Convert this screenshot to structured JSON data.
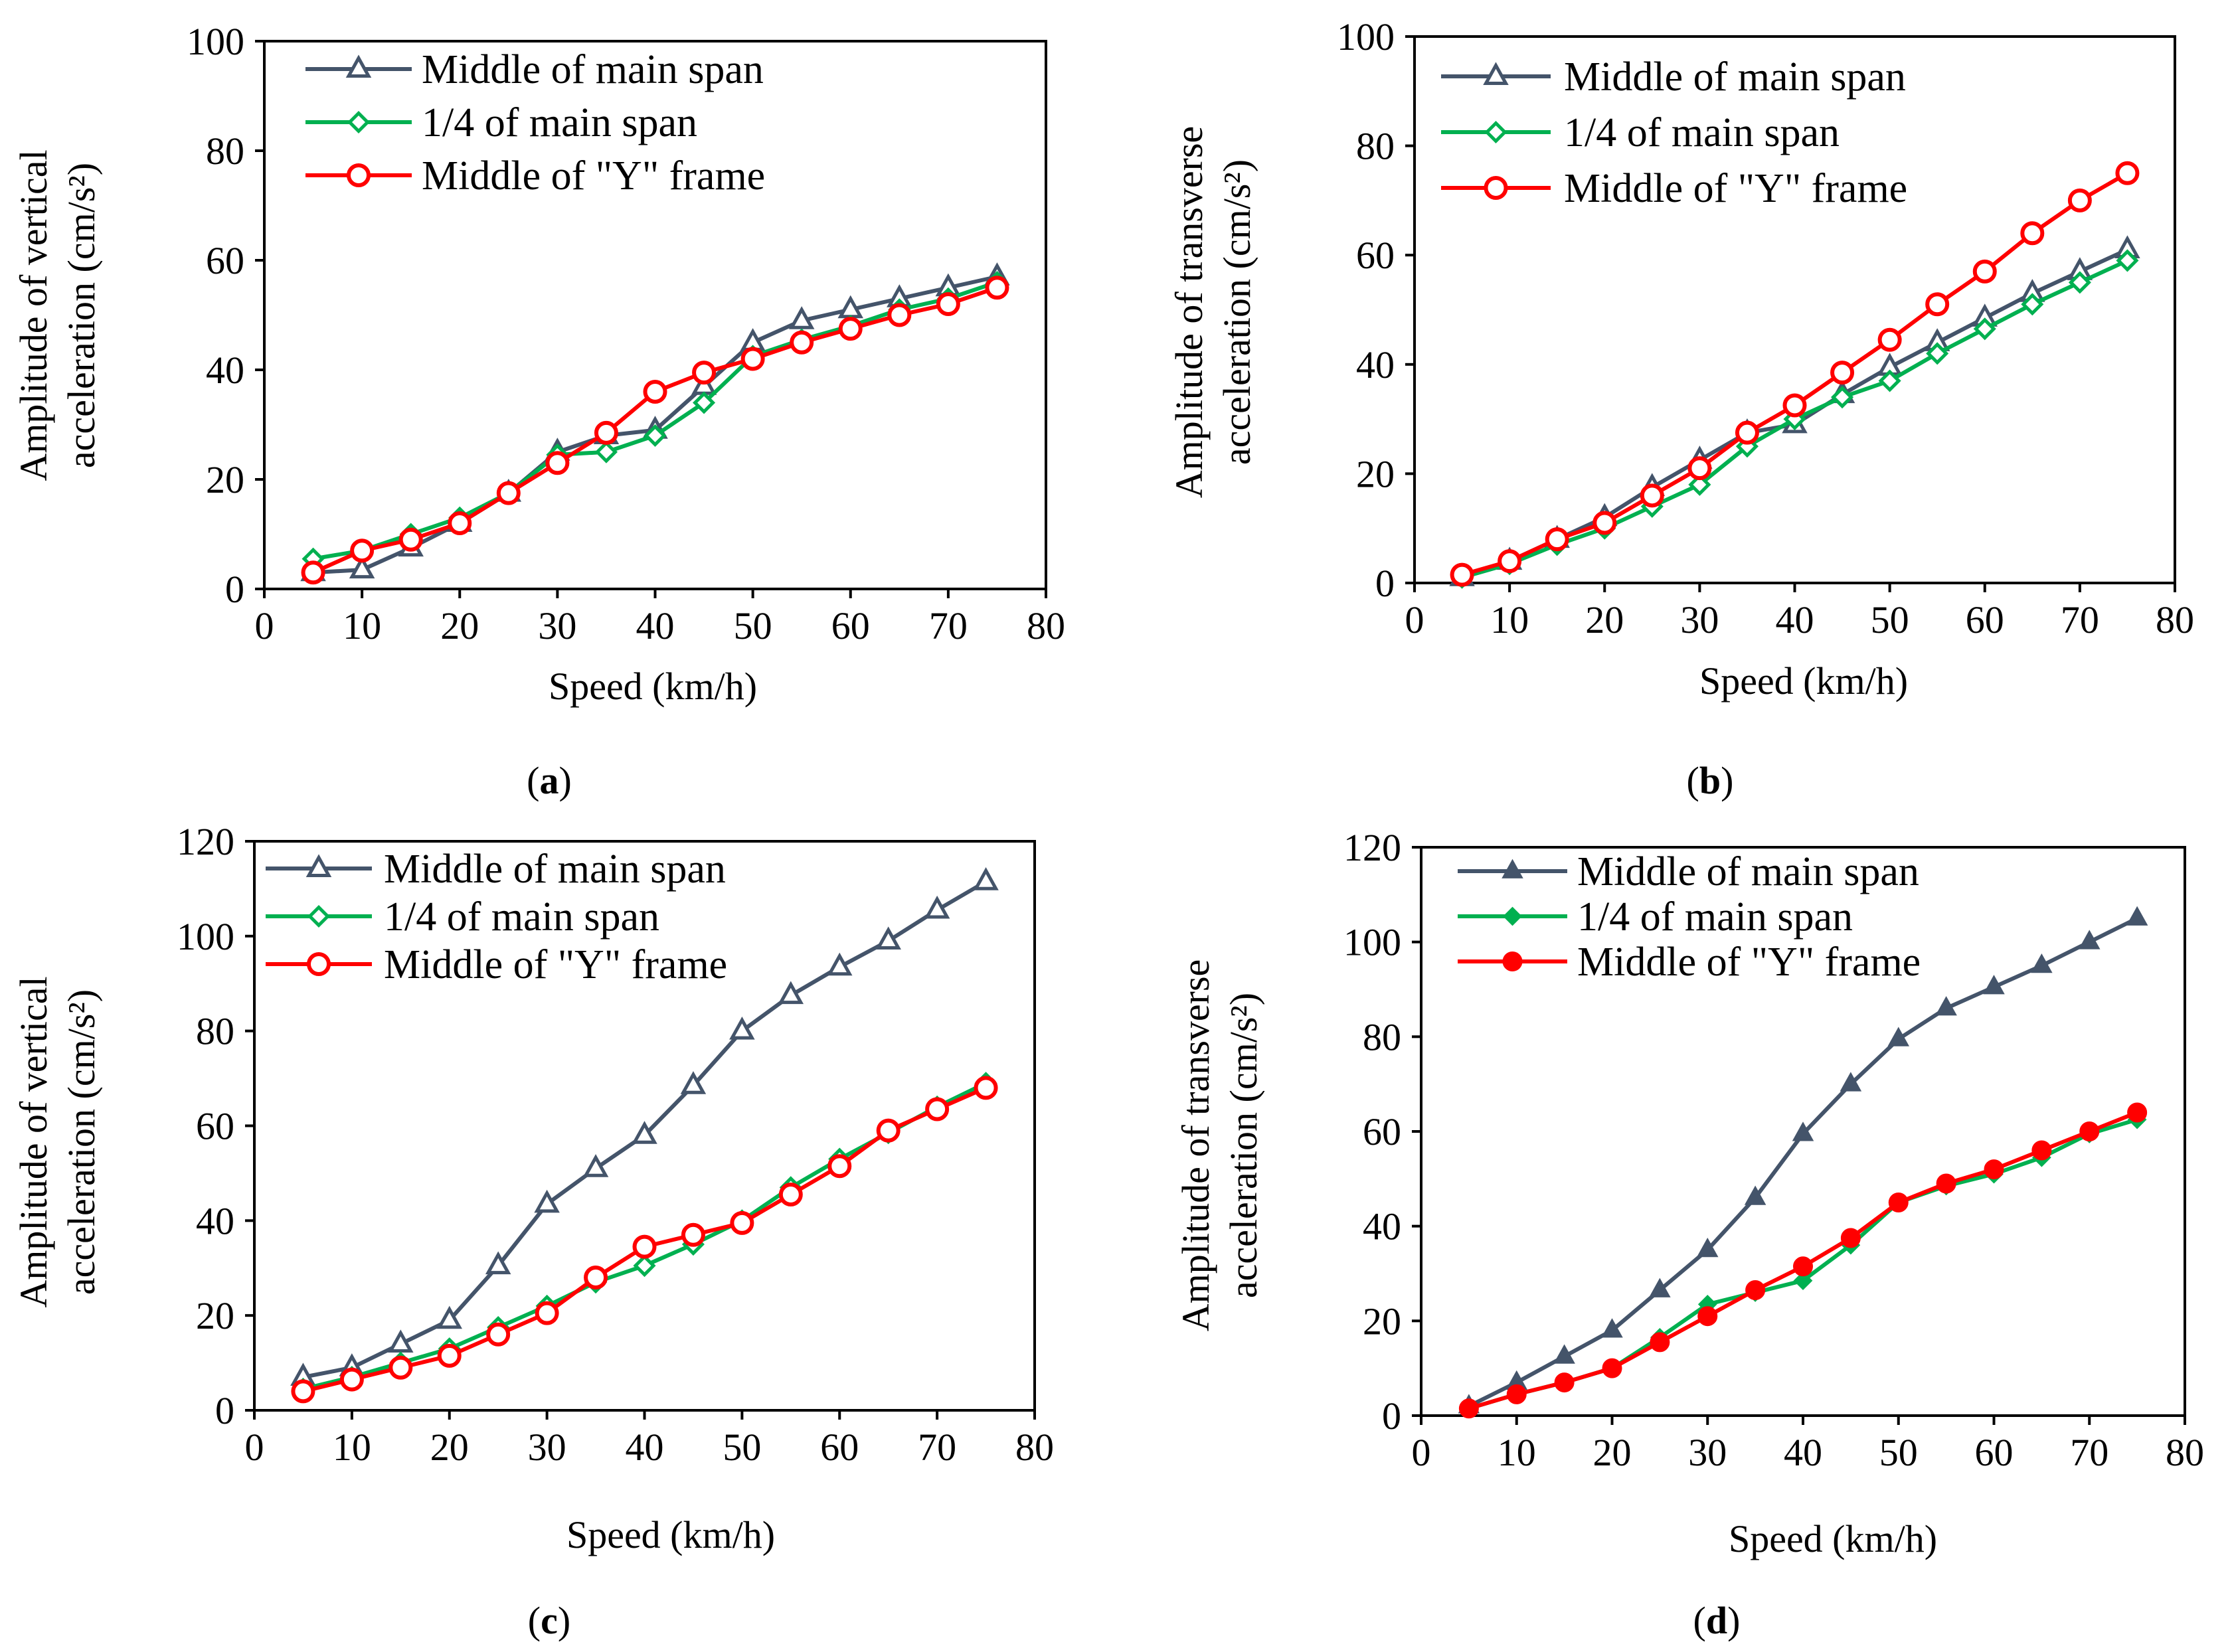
{
  "colors": {
    "middle_main_span": "#44546A",
    "quarter_main_span": "#00B050",
    "middle_y_frame": "#FF0000"
  },
  "chart_data": [
    {
      "id": "a",
      "type": "line",
      "caption_letter": "a",
      "caption": "(a)",
      "xlabel": "Speed (km/h)",
      "ylabel_line1": "Amplitude of vertical",
      "ylabel_line2": "acceleration (cm/s²)",
      "xlim": [
        0,
        80
      ],
      "ylim": [
        0,
        100
      ],
      "xticks": [
        0,
        10,
        20,
        30,
        40,
        50,
        60,
        70,
        80
      ],
      "yticks": [
        0,
        20,
        40,
        60,
        80,
        100
      ],
      "grid": false,
      "legend": "top-left",
      "x": [
        5,
        10,
        15,
        20,
        25,
        30,
        35,
        40,
        45,
        50,
        55,
        60,
        65,
        70,
        75
      ],
      "series": [
        {
          "name": "Middle of main span",
          "marker": "triangle",
          "values": [
            3,
            3.5,
            7.5,
            12,
            17.5,
            25,
            28,
            29,
            37,
            45,
            49,
            51,
            53,
            55,
            57
          ]
        },
        {
          "name": "1/4 of main span",
          "marker": "diamond",
          "values": [
            5.5,
            7,
            10,
            13,
            17.5,
            24.5,
            25,
            28,
            34,
            42.5,
            45.5,
            48,
            51,
            53,
            56
          ]
        },
        {
          "name": "Middle of \"Y\" frame",
          "marker": "circle",
          "values": [
            3,
            7,
            9,
            12,
            17.5,
            23,
            28.5,
            36,
            39.5,
            42,
            45,
            47.5,
            50,
            52,
            55
          ]
        }
      ]
    },
    {
      "id": "b",
      "type": "line",
      "caption_letter": "b",
      "caption": "(b)",
      "xlabel": "Speed (km/h)",
      "ylabel_line1": "Amplitude of transverse",
      "ylabel_line2": "acceleration (cm/s²)",
      "xlim": [
        0,
        80
      ],
      "ylim": [
        0,
        100
      ],
      "xticks": [
        0,
        10,
        20,
        30,
        40,
        50,
        60,
        70,
        80
      ],
      "yticks": [
        0,
        20,
        40,
        60,
        80,
        100
      ],
      "grid": false,
      "legend": "top-left",
      "x": [
        5,
        10,
        15,
        20,
        25,
        30,
        35,
        40,
        45,
        50,
        55,
        60,
        65,
        70,
        75
      ],
      "series": [
        {
          "name": "Middle of main span",
          "marker": "triangle",
          "values": [
            1,
            4,
            8,
            12,
            17.5,
            22.5,
            27.5,
            29,
            34.5,
            39.5,
            44,
            48.5,
            53,
            57,
            61
          ]
        },
        {
          "name": "1/4 of main span",
          "marker": "diamond",
          "values": [
            1,
            3.5,
            7,
            10,
            14,
            18,
            25,
            30,
            34,
            37,
            42,
            46.5,
            51,
            55,
            59
          ]
        },
        {
          "name": "Middle of \"Y\" frame",
          "marker": "circle",
          "values": [
            1.5,
            4,
            8,
            11,
            16,
            21,
            27.5,
            32.5,
            38.5,
            44.5,
            51,
            57,
            64,
            70,
            75
          ]
        }
      ]
    },
    {
      "id": "c",
      "type": "line",
      "caption_letter": "c",
      "caption": "(c)",
      "xlabel": "Speed (km/h)",
      "ylabel_line1": "Amplitude of vertical",
      "ylabel_line2": "acceleration (cm/s²)",
      "xlim": [
        0,
        80
      ],
      "ylim": [
        0,
        120
      ],
      "xticks": [
        0,
        10,
        20,
        30,
        40,
        50,
        60,
        70,
        80
      ],
      "yticks": [
        0,
        20,
        40,
        60,
        80,
        100,
        120
      ],
      "grid": false,
      "legend": "top-left",
      "x": [
        5,
        10,
        15,
        20,
        25,
        30,
        35,
        40,
        45,
        50,
        55,
        60,
        65,
        70,
        75
      ],
      "series": [
        {
          "name": "Middle of main span",
          "marker": "triangle",
          "values": [
            7,
            9,
            14,
            19,
            30.5,
            43.5,
            51,
            58,
            68.5,
            80,
            87.5,
            93.5,
            99,
            105.5,
            111.5
          ]
        },
        {
          "name": "1/4 of main span",
          "marker": "diamond",
          "values": [
            4.5,
            7,
            10,
            13,
            17.5,
            22,
            27,
            30.5,
            35,
            40,
            47,
            53,
            58.5,
            64,
            69
          ]
        },
        {
          "name": "Middle of \"Y\" frame",
          "marker": "circle",
          "values": [
            4,
            6.5,
            9,
            11.5,
            16,
            20.5,
            28,
            34.5,
            37,
            39.5,
            45.5,
            51.5,
            59,
            63.5,
            68
          ]
        }
      ]
    },
    {
      "id": "d",
      "type": "line",
      "caption_letter": "d",
      "caption": "(d)",
      "xlabel": "Speed (km/h)",
      "ylabel_line1": "Amplitude of transverse",
      "ylabel_line2": "acceleration (cm/s²)",
      "xlim": [
        0,
        80
      ],
      "ylim": [
        0,
        120
      ],
      "xticks": [
        0,
        10,
        20,
        30,
        40,
        50,
        60,
        70,
        80
      ],
      "yticks": [
        0,
        20,
        40,
        60,
        80,
        100,
        120
      ],
      "grid": false,
      "legend": "top-left",
      "x": [
        5,
        10,
        15,
        20,
        25,
        30,
        35,
        40,
        45,
        50,
        55,
        60,
        65,
        70,
        75
      ],
      "series": [
        {
          "name": "Middle of main span",
          "marker": "triangle-filled",
          "values": [
            2,
            7,
            12.5,
            18,
            26.5,
            35,
            46,
            59.5,
            70,
            79.5,
            86,
            90.5,
            95,
            100,
            105
          ]
        },
        {
          "name": "1/4 of main span",
          "marker": "diamond-filled",
          "values": [
            1.5,
            4.5,
            7,
            10,
            16.5,
            23.5,
            26,
            28.5,
            36,
            45,
            48.5,
            51,
            54.5,
            59.5,
            62.5
          ]
        },
        {
          "name": "Middle of \"Y\" frame",
          "marker": "circle-filled",
          "values": [
            1.5,
            4.5,
            7,
            10,
            15.5,
            21,
            26.5,
            31.5,
            37.5,
            45,
            49,
            52,
            56,
            60,
            64
          ]
        }
      ]
    }
  ]
}
